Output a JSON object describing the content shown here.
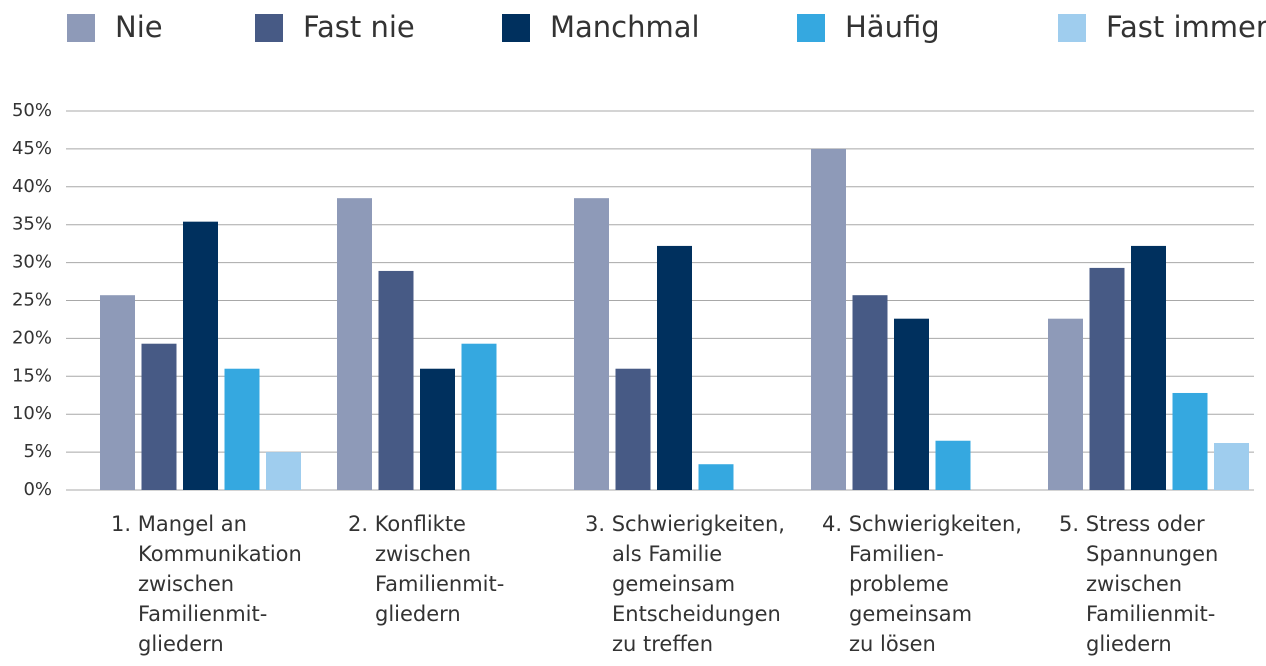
{
  "chart_data": {
    "type": "bar",
    "categories": [
      [
        "1. Mangel an",
        "Kommunikation",
        "zwischen",
        "Familienmit-",
        "gliedern"
      ],
      [
        "2. Konflikte",
        "zwischen",
        "Familienmit-",
        "gliedern"
      ],
      [
        "3. Schwierigkeiten,",
        "als Familie",
        "gemeinsam",
        "Entscheidungen",
        "zu treffen"
      ],
      [
        "4. Schwierigkeiten,",
        "Familien-",
        "probleme",
        "gemeinsam",
        "zu lösen"
      ],
      [
        "5. Stress oder",
        "Spannungen",
        "zwischen",
        "Familienmit-",
        "gliedern"
      ]
    ],
    "series": [
      {
        "name": "Nie",
        "color": "#8e9ab8",
        "values": [
          25.7,
          38.5,
          38.5,
          45.0,
          22.6
        ]
      },
      {
        "name": "Fast nie",
        "color": "#475a85",
        "values": [
          19.3,
          28.9,
          16.0,
          25.7,
          29.3
        ]
      },
      {
        "name": "Manchmal",
        "color": "#00305e",
        "values": [
          35.4,
          16.0,
          32.2,
          22.6,
          32.2
        ]
      },
      {
        "name": "Häufig",
        "color": "#35a8e0",
        "values": [
          16.0,
          19.3,
          3.4,
          6.5,
          12.8
        ]
      },
      {
        "name": "Fast  immer",
        "color": "#9fcdee",
        "values": [
          5.0,
          0,
          0,
          0,
          6.2
        ]
      }
    ],
    "ylim": [
      0,
      50
    ],
    "yticks": [
      {
        "value": 0,
        "label": "0%"
      },
      {
        "value": 5,
        "label": "5%"
      },
      {
        "value": 10,
        "label": "10%"
      },
      {
        "value": 15,
        "label": "15%"
      },
      {
        "value": 20,
        "label": "20%"
      },
      {
        "value": 25,
        "label": "25%"
      },
      {
        "value": 30,
        "label": "30%"
      },
      {
        "value": 35,
        "label": "35%"
      },
      {
        "value": 40,
        "label": "40%"
      },
      {
        "value": 45,
        "label": "45%"
      },
      {
        "value": 50,
        "label": "50%"
      }
    ],
    "grid": true,
    "legend": "top"
  }
}
